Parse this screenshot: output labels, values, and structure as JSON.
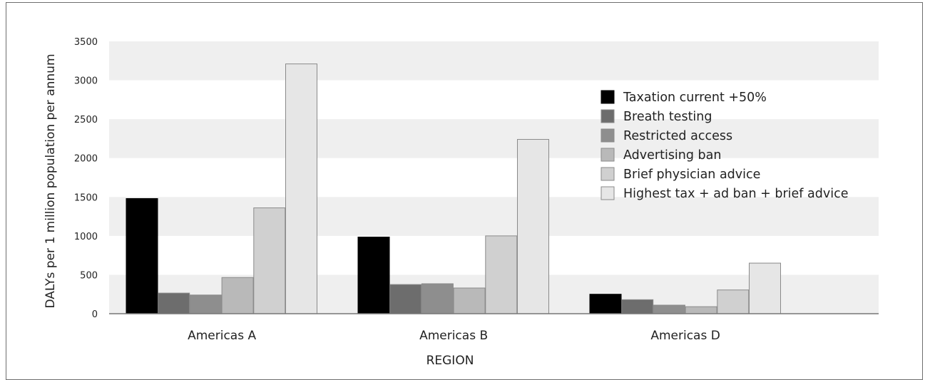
{
  "chart_data": {
    "type": "bar",
    "xlabel": "REGION",
    "ylabel": "DALYs per 1 million population per annum",
    "ylim": [
      0,
      3500
    ],
    "yticks": [
      0,
      500,
      1000,
      1500,
      2000,
      2500,
      3000,
      3500
    ],
    "grid": "alternating horizontal bands",
    "legend_position": "upper-right",
    "categories": [
      "Americas A",
      "Americas B",
      "Americas D"
    ],
    "series": [
      {
        "name": "Taxation current +50%",
        "color": "#000000",
        "values": [
          1480,
          985,
          250
        ]
      },
      {
        "name": "Breath testing",
        "color": "#6d6d6d",
        "values": [
          265,
          375,
          180
        ]
      },
      {
        "name": "Restricted access",
        "color": "#8e8e8e",
        "values": [
          240,
          385,
          110
        ]
      },
      {
        "name": "Advertising ban",
        "color": "#b9b9b9",
        "values": [
          465,
          330,
          90
        ]
      },
      {
        "name": "Brief physician advice",
        "color": "#d0d0d0",
        "values": [
          1360,
          1000,
          305
        ]
      },
      {
        "name": "Highest tax + ad ban + brief advice",
        "color": "#e6e6e6",
        "values": [
          3210,
          2240,
          650
        ]
      }
    ]
  }
}
